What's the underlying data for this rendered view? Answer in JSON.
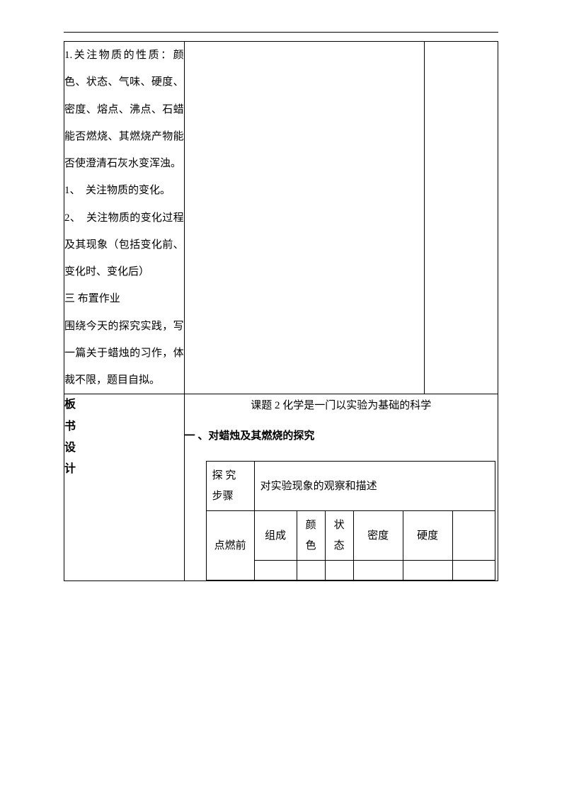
{
  "top_section": {
    "p1": "1.关注物质的性质：颜色、状态、气味、硬度、密度、熔点、沸点、石蜡能否燃烧、其燃烧产物能否使澄清石灰水变浑浊。",
    "li1": "1、　关注物质的变化。",
    "li2": "2、　关注物质的变化过程及其现象（包括变化前、变化时、变化后）",
    "hw_title": "三 布置作业",
    "hw_body": "围绕今天的探究实践，写一篇关于蜡烛的习作，体裁不限，题目自拟。"
  },
  "board": {
    "label_chars": {
      "c1": "板",
      "c2": "书",
      "c3": "设",
      "c4": "计"
    },
    "title": "课题 2 化学是一门以实验为基础的科学",
    "heading": "一 、对蜡烛及其燃烧的探究",
    "table": {
      "steps_header": "探 究 步骤",
      "desc_header": "对实验现象的观察和描述",
      "before_light": "点燃前",
      "columns": {
        "composition": "组成",
        "color": "颜色",
        "state": "状态",
        "density": "密度",
        "hardness": "硬度"
      }
    }
  }
}
